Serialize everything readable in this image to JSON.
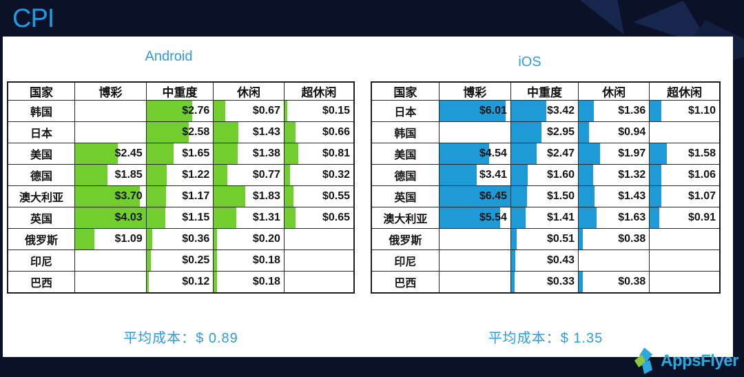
{
  "header": {
    "title": "CPI"
  },
  "colors": {
    "background": "#0B1228",
    "android_bar": "#72CE2F",
    "ios_bar": "#1E9AD6",
    "accent_blue": "#2E9BE5",
    "table_border": "#262626"
  },
  "chart_data": [
    {
      "type": "table",
      "platform": "Android",
      "title": "Android",
      "columns": [
        "国家",
        "博彩",
        "中重度",
        "休闲",
        "超休闲"
      ],
      "currency": "USD",
      "bar_scale_max": 4.03,
      "rows": [
        {
          "country": "韩国",
          "values": [
            null,
            2.76,
            0.67,
            0.15
          ]
        },
        {
          "country": "日本",
          "values": [
            null,
            2.58,
            1.43,
            0.66
          ]
        },
        {
          "country": "美国",
          "values": [
            2.45,
            1.65,
            1.38,
            0.81
          ]
        },
        {
          "country": "德国",
          "values": [
            1.85,
            1.22,
            0.77,
            0.32
          ]
        },
        {
          "country": "澳大利亚",
          "values": [
            3.7,
            1.17,
            1.83,
            0.55
          ]
        },
        {
          "country": "英国",
          "values": [
            4.03,
            1.15,
            1.31,
            0.65
          ]
        },
        {
          "country": "俄罗斯",
          "values": [
            1.09,
            0.36,
            0.2,
            null
          ]
        },
        {
          "country": "印尼",
          "values": [
            null,
            0.25,
            0.18,
            null
          ]
        },
        {
          "country": "巴西",
          "values": [
            null,
            0.12,
            0.18,
            null
          ]
        }
      ],
      "average_label": "平均成本：",
      "average_value": "$ 0.89"
    },
    {
      "type": "table",
      "platform": "iOS",
      "title": "iOS",
      "columns": [
        "国家",
        "博彩",
        "中重度",
        "休闲",
        "超休闲"
      ],
      "currency": "USD",
      "bar_scale_max": 6.45,
      "rows": [
        {
          "country": "日本",
          "values": [
            6.01,
            3.42,
            1.36,
            1.1
          ]
        },
        {
          "country": "韩国",
          "values": [
            null,
            2.95,
            0.94,
            null
          ]
        },
        {
          "country": "美国",
          "values": [
            4.54,
            2.47,
            1.97,
            1.58
          ]
        },
        {
          "country": "德国",
          "values": [
            3.41,
            1.6,
            1.32,
            1.06
          ]
        },
        {
          "country": "英国",
          "values": [
            6.45,
            1.5,
            1.43,
            1.07
          ]
        },
        {
          "country": "澳大利亚",
          "values": [
            5.54,
            1.41,
            1.63,
            0.91
          ]
        },
        {
          "country": "俄罗斯",
          "values": [
            null,
            0.51,
            0.38,
            null
          ]
        },
        {
          "country": "印尼",
          "values": [
            null,
            0.43,
            null,
            null
          ]
        },
        {
          "country": "巴西",
          "values": [
            null,
            0.33,
            0.38,
            null
          ]
        }
      ],
      "average_label": "平均成本：",
      "average_value": "$ 1.35"
    }
  ],
  "footer": {
    "brand": "AppsFlyer"
  }
}
